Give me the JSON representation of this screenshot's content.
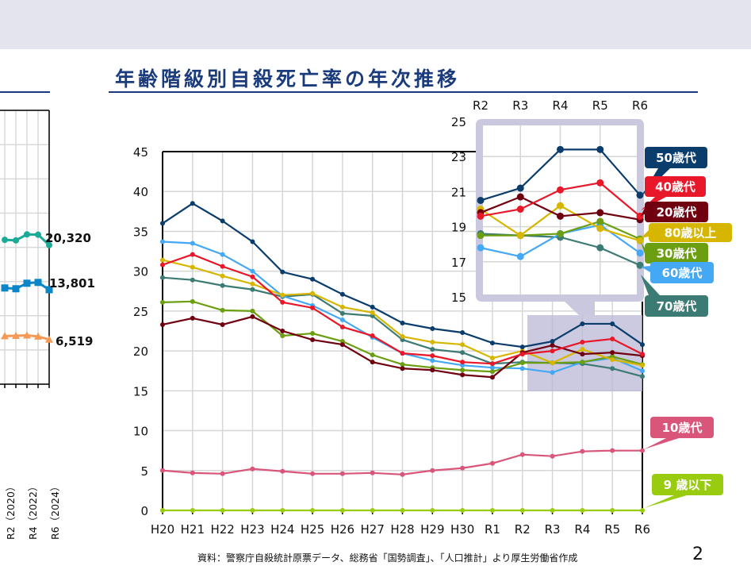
{
  "header": {
    "title": "年齢階級別自殺死亡率の年次推移"
  },
  "footer": {
    "source": "資料：警察庁自殺統計原票データ、総務省「国勢調査」、「人口推計」より厚生労働省作成",
    "page_number": "2"
  },
  "colors": {
    "band": "#e4e4ee",
    "title": "#1a3b7c",
    "inset_frame": "#c9c8de"
  },
  "chart_data": [
    {
      "type": "line",
      "note_partial": true,
      "x": [
        "R2",
        "R3",
        "R4",
        "R5",
        "R6"
      ],
      "x_tick_labels": [
        "R2（2020）",
        "R4（2022）",
        "R6（2024）"
      ],
      "ylim": [
        0,
        40000
      ],
      "grid": true,
      "series": [
        {
          "color": "#1aaa96",
          "marker": "circle",
          "values": [
            21081,
            21007,
            21881,
            21837,
            20320
          ],
          "end_label": "20,320"
        },
        {
          "color": "#0a86c8",
          "marker": "square",
          "values": [
            14055,
            13939,
            14746,
            14862,
            13801
          ],
          "end_label": "13,801"
        },
        {
          "color": "#f59a55",
          "marker": "triangle",
          "values": [
            7026,
            7068,
            7135,
            6975,
            6519
          ],
          "end_label": "6,519"
        }
      ]
    },
    {
      "type": "line",
      "title": "年齢階級別自殺死亡率の年次推移",
      "x": [
        "H20",
        "H21",
        "H22",
        "H23",
        "H24",
        "H25",
        "H26",
        "H27",
        "H28",
        "H29",
        "H30",
        "R1",
        "R2",
        "R3",
        "R4",
        "R5",
        "R6"
      ],
      "ylim": [
        0,
        45
      ],
      "yticks": [
        0,
        5,
        10,
        15,
        20,
        25,
        30,
        35,
        40,
        45
      ],
      "grid": true,
      "series": [
        {
          "name": "50歳代",
          "color": "#0a3d6b",
          "values": [
            36.0,
            38.5,
            36.3,
            33.7,
            29.9,
            29.0,
            27.1,
            25.5,
            23.5,
            22.8,
            22.3,
            21.0,
            20.5,
            21.2,
            23.4,
            23.4,
            20.8
          ]
        },
        {
          "name": "40歳代",
          "color": "#e8182a",
          "values": [
            30.8,
            32.1,
            30.6,
            29.3,
            26.1,
            25.4,
            23.0,
            21.9,
            19.7,
            19.4,
            18.6,
            18.4,
            19.6,
            20.0,
            21.1,
            21.5,
            19.6
          ]
        },
        {
          "name": "20歳代",
          "color": "#700010",
          "values": [
            23.3,
            24.1,
            23.3,
            24.3,
            22.5,
            21.4,
            20.8,
            18.6,
            17.8,
            17.6,
            17.0,
            16.7,
            19.8,
            20.7,
            19.6,
            19.8,
            19.4
          ]
        },
        {
          "name": "80歳以上",
          "color": "#d6b600",
          "values": [
            31.4,
            30.5,
            29.4,
            28.4,
            27.0,
            27.2,
            25.5,
            24.8,
            21.8,
            21.1,
            20.8,
            19.1,
            20.0,
            18.5,
            20.2,
            18.9,
            18.2
          ]
        },
        {
          "name": "30歳代",
          "color": "#6b9e10",
          "values": [
            26.1,
            26.2,
            25.1,
            25.0,
            21.9,
            22.2,
            21.2,
            19.5,
            18.3,
            17.9,
            17.6,
            17.4,
            18.5,
            18.5,
            18.6,
            19.3,
            18.3
          ]
        },
        {
          "name": "60歳代",
          "color": "#44a8f5",
          "values": [
            33.7,
            33.5,
            32.1,
            30.0,
            26.9,
            25.7,
            23.9,
            21.7,
            19.7,
            18.8,
            18.2,
            17.9,
            17.8,
            17.3,
            18.6,
            19.1,
            17.5
          ]
        },
        {
          "name": "70歳代",
          "color": "#3c7b73",
          "values": [
            29.2,
            28.9,
            28.2,
            27.7,
            26.8,
            27.1,
            24.7,
            24.4,
            21.4,
            20.2,
            19.8,
            18.4,
            18.6,
            18.5,
            18.4,
            17.8,
            16.8
          ]
        },
        {
          "name": "10歳代",
          "color": "#d9557a",
          "values": [
            5.0,
            4.7,
            4.6,
            5.2,
            4.9,
            4.6,
            4.6,
            4.7,
            4.5,
            5.0,
            5.3,
            5.9,
            7.0,
            6.8,
            7.4,
            7.5,
            7.5
          ]
        },
        {
          "name": "9 歳以下",
          "color": "#99cc11",
          "values": [
            0,
            0,
            0,
            0,
            0,
            0,
            0,
            0,
            0,
            0,
            0,
            0,
            0,
            0,
            0,
            0,
            0
          ]
        }
      ]
    },
    {
      "type": "line",
      "inset_of": "main",
      "x": [
        "R2",
        "R3",
        "R4",
        "R5",
        "R6"
      ],
      "ylim": [
        15,
        25
      ],
      "yticks": [
        15,
        17,
        19,
        21,
        23,
        25
      ],
      "grid": true
    }
  ]
}
